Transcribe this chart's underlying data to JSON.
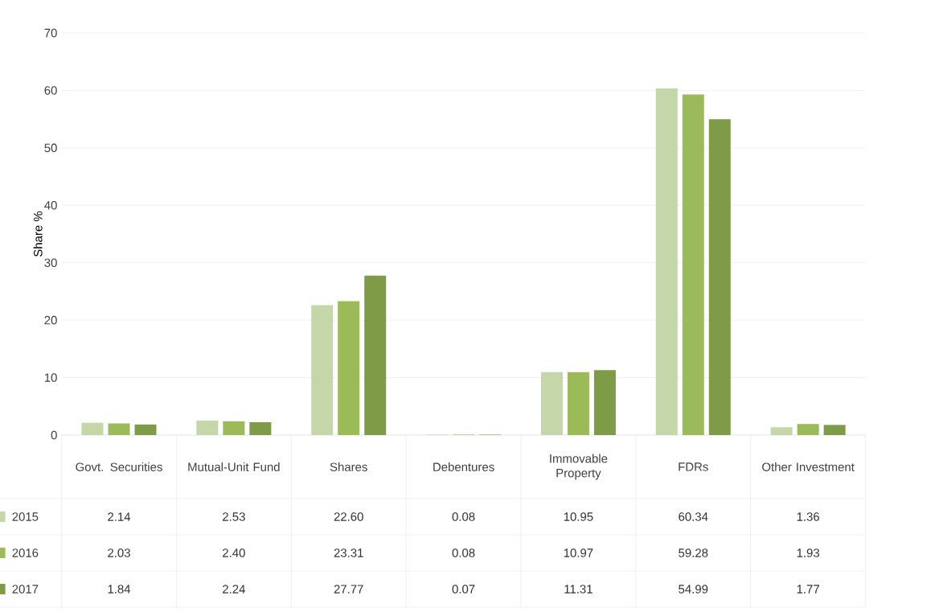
{
  "chart_data": {
    "type": "bar",
    "ylabel": "Share %",
    "categories": [
      "Govt. Securities",
      "Mutual-Unit Fund",
      "Shares",
      "Debentures",
      "Immovable Property",
      "FDRs",
      "Other Investment"
    ],
    "series": [
      {
        "name": "2015",
        "color": "#c5d6a9",
        "values": [
          2.14,
          2.53,
          22.6,
          0.08,
          10.95,
          60.34,
          1.36
        ],
        "value_labels": [
          "2.14",
          "2.53",
          "22.60",
          "0.08",
          "10.95",
          "60.34",
          "1.36"
        ]
      },
      {
        "name": "2016",
        "color": "#9bbb59",
        "values": [
          2.03,
          2.4,
          23.31,
          0.08,
          10.97,
          59.28,
          1.93
        ],
        "value_labels": [
          "2.03",
          "2.40",
          "23.31",
          "0.08",
          "10.97",
          "59.28",
          "1.93"
        ]
      },
      {
        "name": "2017",
        "color": "#7e9b48",
        "values": [
          1.84,
          2.24,
          27.77,
          0.07,
          11.31,
          54.99,
          1.77
        ],
        "value_labels": [
          "1.84",
          "2.24",
          "27.77",
          "0.07",
          "11.31",
          "54.99",
          "1.77"
        ]
      }
    ],
    "ylim": [
      0,
      70
    ],
    "yticks": [
      0,
      10,
      20,
      30,
      40,
      50,
      60,
      70
    ],
    "grid": "y",
    "legend": "bottom"
  }
}
